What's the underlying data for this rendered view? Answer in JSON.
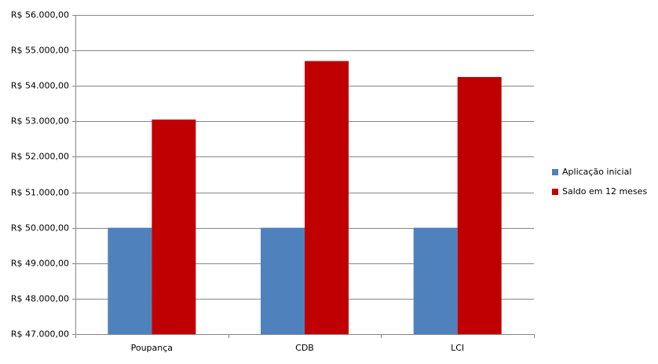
{
  "chart_data": {
    "type": "bar",
    "categories": [
      "Poupança",
      "CDB",
      "LCI"
    ],
    "series": [
      {
        "name": "Aplicação inicial",
        "color": "#4f81bd",
        "values": [
          50000,
          50000,
          50000
        ]
      },
      {
        "name": "Saldo em 12 meses",
        "color": "#c00000",
        "values": [
          53050,
          54700,
          54250
        ]
      }
    ],
    "ylim": [
      47000,
      56000
    ],
    "yticks": [
      {
        "value": 47000,
        "label": "R$ 47.000,00"
      },
      {
        "value": 48000,
        "label": "R$ 48.000,00"
      },
      {
        "value": 49000,
        "label": "R$ 49.000,00"
      },
      {
        "value": 50000,
        "label": "R$ 50.000,00"
      },
      {
        "value": 51000,
        "label": "R$ 51.000,00"
      },
      {
        "value": 52000,
        "label": "R$ 52.000,00"
      },
      {
        "value": 53000,
        "label": "R$ 53.000,00"
      },
      {
        "value": 54000,
        "label": "R$ 54.000,00"
      },
      {
        "value": 55000,
        "label": "R$ 55.000,00"
      },
      {
        "value": 56000,
        "label": "R$ 56.000,00"
      }
    ],
    "grid": true,
    "legend": "right"
  }
}
